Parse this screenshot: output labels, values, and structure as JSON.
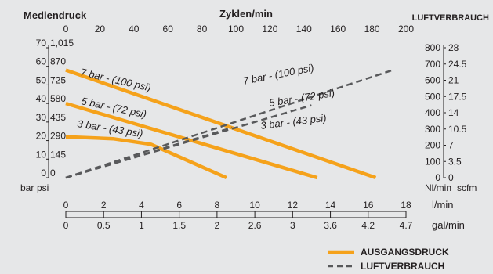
{
  "chart_data": {
    "type": "line",
    "left_title": "Mediendruck",
    "top_title": "Zyklen/min",
    "right_title": "LUFTVERBRAUCH",
    "top_axis": {
      "min": 0,
      "max": 200,
      "ticks": [
        "0",
        "20",
        "40",
        "60",
        "80",
        "100",
        "120",
        "140",
        "160",
        "180",
        "200"
      ]
    },
    "left_axis": {
      "min": 0,
      "max": 70,
      "bar_ticks": [
        "0",
        "10",
        "20",
        "30",
        "40",
        "50",
        "60",
        "70"
      ],
      "psi_ticks": [
        "0",
        "145",
        "290",
        "435",
        "580",
        "725",
        "870",
        "1,015"
      ],
      "bar_label": "bar",
      "psi_label": "psi"
    },
    "right_axis": {
      "min": 0,
      "max": 800,
      "nlmin_ticks": [
        "0",
        "100",
        "200",
        "300",
        "400",
        "500",
        "600",
        "700",
        "800"
      ],
      "scfm_ticks": [
        "0",
        "3.5",
        "7",
        "10.5",
        "14",
        "17.5",
        "21",
        "24.5",
        "28"
      ],
      "nlmin_label": "Nl/min",
      "scfm_label": "scfm"
    },
    "bottom_axis_1": {
      "min": 0,
      "max": 18,
      "ticks": [
        "0",
        "2",
        "4",
        "6",
        "8",
        "10",
        "12",
        "14",
        "16",
        "18"
      ],
      "unit": "l/min"
    },
    "bottom_axis_2": {
      "min": 0,
      "max": 4.7,
      "ticks": [
        "0",
        "0.5",
        "1",
        "1.5",
        "2",
        "2.6",
        "3",
        "3.6",
        "4.2",
        "4.7"
      ],
      "unit": "gal/min"
    },
    "series": [
      {
        "name": "AUSGANGSDRUCK",
        "style": "solid",
        "color": "#f5a21b",
        "lines": [
          {
            "label": "7 bar - (100 psi)",
            "points": [
              [
                0,
                58
              ],
              [
                16.4,
                0
              ]
            ]
          },
          {
            "label": "5 bar - (72 psi)",
            "points": [
              [
                0,
                40
              ],
              [
                13.3,
                0
              ]
            ]
          },
          {
            "label": "3 bar - (43 psi)",
            "points": [
              [
                0,
                22
              ],
              [
                2.5,
                21
              ],
              [
                4.5,
                18
              ],
              [
                8.5,
                0
              ]
            ]
          }
        ]
      },
      {
        "name": "LUFTVERBRAUCH",
        "style": "dashed",
        "color": "#58595b",
        "lines": [
          {
            "label": "7 bar - (100 psi)",
            "points": [
              [
                0,
                0
              ],
              [
                17.3,
                58
              ]
            ]
          },
          {
            "label": "5 bar - (72 psi)",
            "points": [
              [
                0,
                0
              ],
              [
                13,
                39
              ]
            ]
          },
          {
            "label": "3 bar - (43 psi)",
            "points": [
              [
                0,
                0
              ],
              [
                8.8,
                27
              ]
            ]
          }
        ]
      }
    ],
    "legend": {
      "position": "bottom-right",
      "items": [
        "AUSGANGSDRUCK",
        "LUFTVERBRAUCH"
      ]
    }
  }
}
